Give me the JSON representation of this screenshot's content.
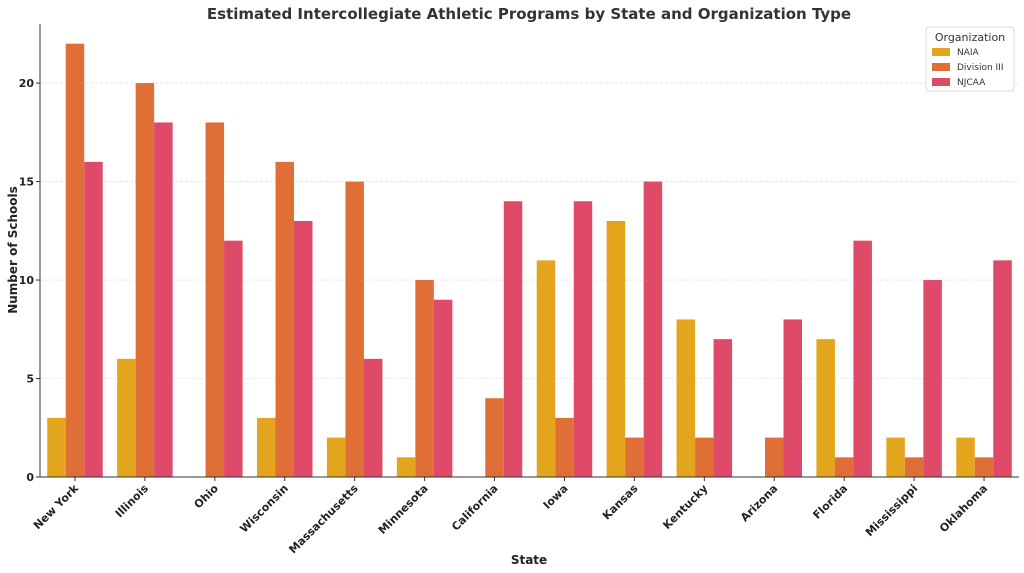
{
  "chart_data": {
    "type": "bar",
    "title": "Estimated Intercollegiate Athletic Programs by State and Organization Type",
    "xlabel": "State",
    "ylabel": "Number of Schools",
    "ylim": [
      0,
      23
    ],
    "yticks": [
      0,
      5,
      10,
      15,
      20
    ],
    "grid": "horizontal dashed",
    "legend_title": "Organization",
    "legend_position": "top-right",
    "categories": [
      "New York",
      "Illinois",
      "Ohio",
      "Wisconsin",
      "Massachusetts",
      "Minnesota",
      "California",
      "Iowa",
      "Kansas",
      "Kentucky",
      "Arizona",
      "Florida",
      "Mississippi",
      "Oklahoma"
    ],
    "series": [
      {
        "name": "NAIA",
        "color": "#E3A41E",
        "values": [
          3,
          6,
          0,
          3,
          2,
          1,
          0,
          11,
          13,
          8,
          0,
          7,
          2,
          2
        ]
      },
      {
        "name": "Division III",
        "color": "#DF6E37",
        "values": [
          22,
          20,
          18,
          16,
          15,
          10,
          4,
          3,
          2,
          2,
          2,
          1,
          1,
          1
        ]
      },
      {
        "name": "NJCAA",
        "color": "#DE4A68",
        "values": [
          16,
          18,
          12,
          13,
          6,
          9,
          14,
          14,
          15,
          7,
          8,
          12,
          10,
          11
        ]
      }
    ]
  }
}
